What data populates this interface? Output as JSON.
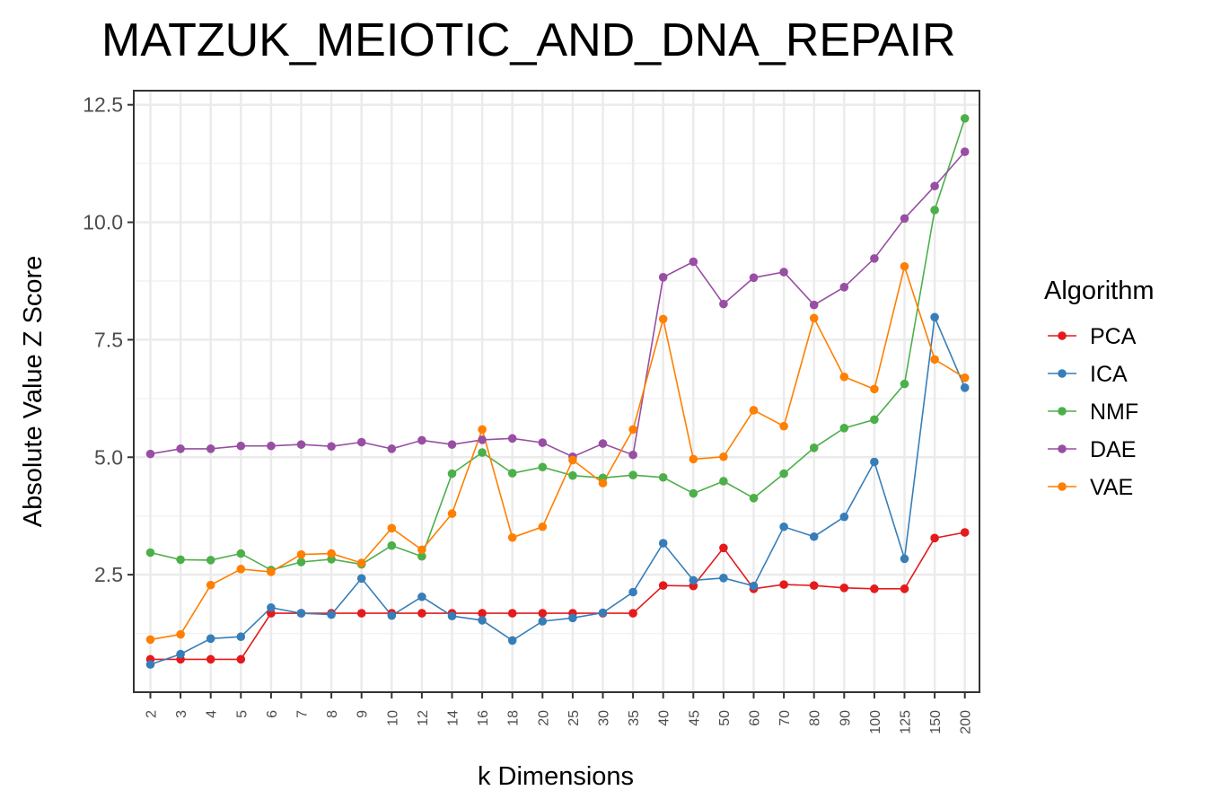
{
  "chart_data": {
    "type": "line",
    "title": "MATZUK_MEIOTIC_AND_DNA_REPAIR",
    "xlabel": "k Dimensions",
    "ylabel": "Absolute Value Z Score",
    "categories": [
      "2",
      "3",
      "4",
      "5",
      "6",
      "7",
      "8",
      "9",
      "10",
      "12",
      "14",
      "16",
      "18",
      "20",
      "25",
      "30",
      "35",
      "40",
      "45",
      "50",
      "60",
      "70",
      "80",
      "90",
      "100",
      "125",
      "150",
      "200"
    ],
    "ylim": [
      0,
      12.8
    ],
    "yticks": [
      2.5,
      5.0,
      7.5,
      10.0,
      12.5
    ],
    "ytick_labels": [
      "2.5",
      "5.0",
      "7.5",
      "10.0",
      "12.5"
    ],
    "grid": true,
    "legend": {
      "title": "Algorithm",
      "position": "right"
    },
    "series": [
      {
        "name": "PCA",
        "color": "#e41a1c",
        "values": [
          0.7,
          0.7,
          0.7,
          0.7,
          1.68,
          1.68,
          1.68,
          1.68,
          1.68,
          1.68,
          1.68,
          1.68,
          1.68,
          1.68,
          1.68,
          1.68,
          1.68,
          2.27,
          2.26,
          3.07,
          2.2,
          2.29,
          2.27,
          2.22,
          2.2,
          2.2,
          3.28,
          3.4
        ]
      },
      {
        "name": "ICA",
        "color": "#377eb8",
        "values": [
          0.59,
          0.81,
          1.14,
          1.18,
          1.8,
          1.68,
          1.65,
          2.42,
          1.63,
          2.03,
          1.62,
          1.53,
          1.1,
          1.51,
          1.58,
          1.69,
          2.13,
          3.17,
          2.38,
          2.43,
          2.26,
          3.52,
          3.31,
          3.73,
          4.9,
          2.84,
          7.98,
          6.48
        ]
      },
      {
        "name": "NMF",
        "color": "#4daf4a",
        "values": [
          2.97,
          2.82,
          2.81,
          2.95,
          2.6,
          2.77,
          2.83,
          2.72,
          3.12,
          2.89,
          4.65,
          5.1,
          4.66,
          4.79,
          4.61,
          4.56,
          4.62,
          4.57,
          4.23,
          4.49,
          4.13,
          4.65,
          5.2,
          5.62,
          5.8,
          6.56,
          10.26,
          12.21
        ]
      },
      {
        "name": "DAE",
        "color": "#984ea3",
        "values": [
          5.07,
          5.18,
          5.18,
          5.24,
          5.24,
          5.27,
          5.23,
          5.32,
          5.18,
          5.36,
          5.27,
          5.37,
          5.4,
          5.31,
          5.01,
          5.29,
          5.05,
          8.83,
          9.16,
          8.26,
          8.82,
          8.94,
          8.24,
          8.62,
          9.23,
          10.08,
          10.77,
          11.5
        ]
      },
      {
        "name": "VAE",
        "color": "#ff7f00",
        "values": [
          1.12,
          1.23,
          2.28,
          2.62,
          2.56,
          2.93,
          2.95,
          2.75,
          3.49,
          3.03,
          3.8,
          5.59,
          3.29,
          3.52,
          4.94,
          4.45,
          5.59,
          7.94,
          4.96,
          5.01,
          6.0,
          5.66,
          7.96,
          6.71,
          6.45,
          9.06,
          7.08,
          6.69
        ]
      }
    ]
  }
}
